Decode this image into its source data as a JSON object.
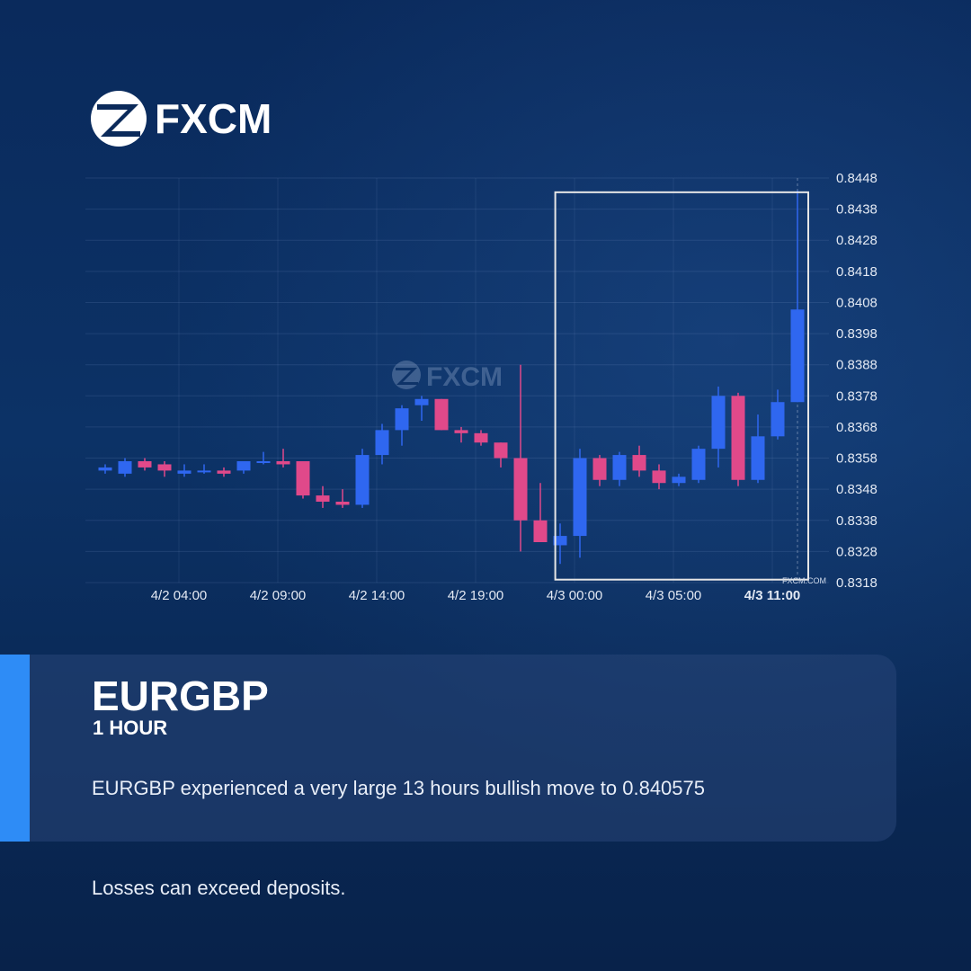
{
  "brand": {
    "name": "FXCM",
    "watermark": "FXCM",
    "credit": "FXCM.COM"
  },
  "colors": {
    "bullish": "#2f67f0",
    "bearish": "#e0498a",
    "accent": "#2e8cf6",
    "highlight_box": "#e6e6e6"
  },
  "info": {
    "symbol": "EURGBP",
    "timeframe": "1 HOUR",
    "message": "EURGBP experienced a very large 13 hours bullish move to 0.840575"
  },
  "disclaimer": "Losses can exceed deposits.",
  "chart_data": {
    "type": "candlestick",
    "ylim": [
      0.8318,
      0.8448
    ],
    "y_ticks": [
      "0.8448",
      "0.8438",
      "0.8428",
      "0.8418",
      "0.8408",
      "0.8398",
      "0.8388",
      "0.8378",
      "0.8368",
      "0.8358",
      "0.8348",
      "0.8338",
      "0.8328",
      "0.8318"
    ],
    "x_ticks": [
      {
        "label": "4/2 04:00",
        "index": 5
      },
      {
        "label": "4/2 09:00",
        "index": 10
      },
      {
        "label": "4/2 14:00",
        "index": 15
      },
      {
        "label": "4/2 19:00",
        "index": 20
      },
      {
        "label": "4/3 00:00",
        "index": 25
      },
      {
        "label": "4/3 05:00",
        "index": 30
      },
      {
        "label": "4/3 11:00",
        "index": 35,
        "bold": true
      }
    ],
    "highlight": {
      "start_index": 22.8,
      "end_index": 35.5,
      "low": 0.8323,
      "high": 0.8444
    },
    "candles": [
      {
        "o": 0.8354,
        "h": 0.8356,
        "l": 0.8353,
        "c": 0.8355
      },
      {
        "o": 0.8353,
        "h": 0.8358,
        "l": 0.8352,
        "c": 0.8357
      },
      {
        "o": 0.8357,
        "h": 0.8358,
        "l": 0.8354,
        "c": 0.8355
      },
      {
        "o": 0.8356,
        "h": 0.8357,
        "l": 0.8352,
        "c": 0.8354
      },
      {
        "o": 0.8353,
        "h": 0.8356,
        "l": 0.8352,
        "c": 0.8354
      },
      {
        "o": 0.8354,
        "h": 0.8356,
        "l": 0.8353,
        "c": 0.8354
      },
      {
        "o": 0.8354,
        "h": 0.8355,
        "l": 0.8352,
        "c": 0.8353
      },
      {
        "o": 0.8354,
        "h": 0.8357,
        "l": 0.8353,
        "c": 0.8357
      },
      {
        "o": 0.8357,
        "h": 0.836,
        "l": 0.8356,
        "c": 0.8357
      },
      {
        "o": 0.8357,
        "h": 0.8361,
        "l": 0.8355,
        "c": 0.8356
      },
      {
        "o": 0.8357,
        "h": 0.8357,
        "l": 0.8345,
        "c": 0.8346
      },
      {
        "o": 0.8346,
        "h": 0.8349,
        "l": 0.8342,
        "c": 0.8344
      },
      {
        "o": 0.8344,
        "h": 0.8348,
        "l": 0.8342,
        "c": 0.8343
      },
      {
        "o": 0.8343,
        "h": 0.8361,
        "l": 0.8342,
        "c": 0.8359
      },
      {
        "o": 0.8359,
        "h": 0.8369,
        "l": 0.8356,
        "c": 0.8367
      },
      {
        "o": 0.8367,
        "h": 0.8375,
        "l": 0.8362,
        "c": 0.8374
      },
      {
        "o": 0.8375,
        "h": 0.8378,
        "l": 0.837,
        "c": 0.8377
      },
      {
        "o": 0.8377,
        "h": 0.8377,
        "l": 0.8367,
        "c": 0.8367
      },
      {
        "o": 0.8367,
        "h": 0.8368,
        "l": 0.8363,
        "c": 0.8366
      },
      {
        "o": 0.8366,
        "h": 0.8367,
        "l": 0.8362,
        "c": 0.8363
      },
      {
        "o": 0.8363,
        "h": 0.8363,
        "l": 0.8355,
        "c": 0.8358
      },
      {
        "o": 0.8358,
        "h": 0.8388,
        "l": 0.8328,
        "c": 0.8338
      },
      {
        "o": 0.8338,
        "h": 0.835,
        "l": 0.8332,
        "c": 0.8331
      },
      {
        "o": 0.833,
        "h": 0.8337,
        "l": 0.8324,
        "c": 0.8333
      },
      {
        "o": 0.8333,
        "h": 0.8361,
        "l": 0.8326,
        "c": 0.8358
      },
      {
        "o": 0.8358,
        "h": 0.8359,
        "l": 0.8349,
        "c": 0.8351
      },
      {
        "o": 0.8351,
        "h": 0.836,
        "l": 0.8349,
        "c": 0.8359
      },
      {
        "o": 0.8359,
        "h": 0.8362,
        "l": 0.8352,
        "c": 0.8354
      },
      {
        "o": 0.8354,
        "h": 0.8356,
        "l": 0.8348,
        "c": 0.835
      },
      {
        "o": 0.835,
        "h": 0.8353,
        "l": 0.8349,
        "c": 0.8352
      },
      {
        "o": 0.8351,
        "h": 0.8362,
        "l": 0.835,
        "c": 0.8361
      },
      {
        "o": 0.8361,
        "h": 0.8381,
        "l": 0.8355,
        "c": 0.8378
      },
      {
        "o": 0.8378,
        "h": 0.8379,
        "l": 0.8349,
        "c": 0.8351
      },
      {
        "o": 0.8351,
        "h": 0.8372,
        "l": 0.835,
        "c": 0.8365
      },
      {
        "o": 0.8365,
        "h": 0.838,
        "l": 0.8364,
        "c": 0.8376
      },
      {
        "o": 0.8376,
        "h": 0.8444,
        "l": 0.8376,
        "c": 0.840575
      }
    ]
  }
}
